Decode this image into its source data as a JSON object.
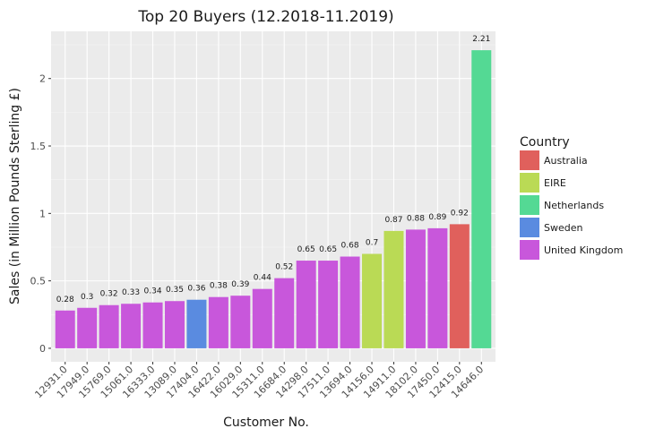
{
  "chart_data": {
    "type": "bar",
    "title": "Top 20 Buyers (12.2018-11.2019)",
    "xlabel": "Customer No.",
    "ylabel": "Sales (in Million Pounds Sterling £)",
    "ylim": [
      -0.1,
      2.35
    ],
    "yticks": [
      0,
      0.5,
      1,
      1.5,
      2
    ],
    "ytick_labels": [
      "0",
      "0.5",
      "1",
      "1.5",
      "2"
    ],
    "grid": true,
    "legend": {
      "title": "Country",
      "placement": "right",
      "entries": [
        {
          "label": "Australia",
          "color": "#E0605C"
        },
        {
          "label": "EIRE",
          "color": "#BADA55"
        },
        {
          "label": "Netherlands",
          "color": "#54D994"
        },
        {
          "label": "Sweden",
          "color": "#5A8BE0"
        },
        {
          "label": "United Kingdom",
          "color": "#C857DB"
        }
      ]
    },
    "categories": [
      "12931.0",
      "17949.0",
      "15769.0",
      "15061.0",
      "16333.0",
      "13089.0",
      "17404.0",
      "16422.0",
      "16029.0",
      "15311.0",
      "16684.0",
      "14298.0",
      "17511.0",
      "13694.0",
      "14156.0",
      "14911.0",
      "18102.0",
      "17450.0",
      "12415.0",
      "14646.0"
    ],
    "values": [
      0.28,
      0.3,
      0.32,
      0.33,
      0.34,
      0.35,
      0.36,
      0.38,
      0.39,
      0.44,
      0.52,
      0.65,
      0.65,
      0.68,
      0.7,
      0.87,
      0.88,
      0.89,
      0.92,
      2.21
    ],
    "value_labels": [
      "0.28",
      "0.3",
      "0.32",
      "0.33",
      "0.34",
      "0.35",
      "0.36",
      "0.38",
      "0.39",
      "0.44",
      "0.52",
      "0.65",
      "0.65",
      "0.68",
      "0.7",
      "0.87",
      "0.88",
      "0.89",
      "0.92",
      "2.21"
    ],
    "countries": [
      "United Kingdom",
      "United Kingdom",
      "United Kingdom",
      "United Kingdom",
      "United Kingdom",
      "United Kingdom",
      "Sweden",
      "United Kingdom",
      "United Kingdom",
      "United Kingdom",
      "United Kingdom",
      "United Kingdom",
      "United Kingdom",
      "United Kingdom",
      "EIRE",
      "EIRE",
      "United Kingdom",
      "United Kingdom",
      "Australia",
      "Netherlands"
    ]
  }
}
